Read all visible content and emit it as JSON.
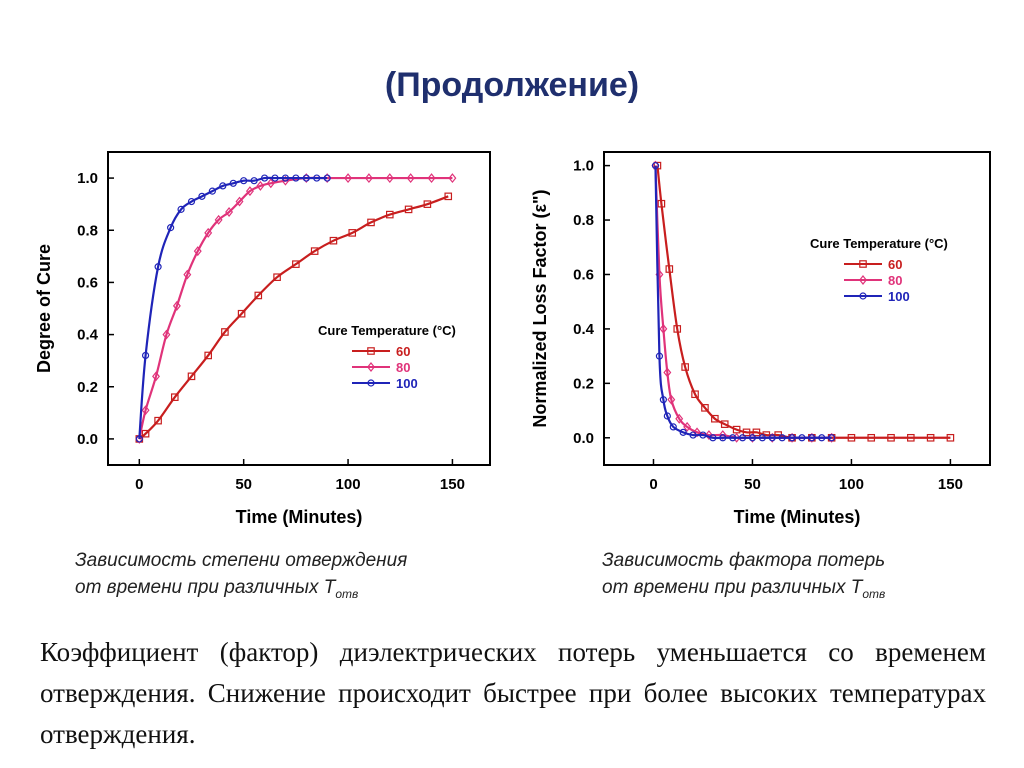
{
  "slide": {
    "title": "(Продолжение)",
    "caption_left_line1": "Зависимость степени отверждения",
    "caption_left_line2": "от времени при различных T",
    "caption_left_sub": "отв",
    "caption_right_line1": "Зависимость фактора потерь",
    "caption_right_line2": "от времени при различных T",
    "caption_right_sub": "отв",
    "body": "Коэффициент (фактор) диэлектрических потерь уменьшается со временем отверждения. Снижение происходит быстрее при более высоких температурах отверждения."
  },
  "colors": {
    "s60": "#c81e1e",
    "s80": "#e0337a",
    "s100": "#1f24b8",
    "title": "#1f2f6e"
  },
  "chart_data": [
    {
      "type": "line",
      "xlabel": "Time (Minutes)",
      "ylabel": "Degree of Cure",
      "xlim": [
        -15,
        168
      ],
      "ylim": [
        -0.1,
        1.1
      ],
      "xticks": [
        "0",
        "50",
        "100",
        "150"
      ],
      "yticks": [
        "0.0",
        "0.2",
        "0.4",
        "0.6",
        "0.8",
        "1.0"
      ],
      "legend_title": "Cure Temperature (°C)",
      "legend_position": "bottom-right",
      "series": [
        {
          "name": "60",
          "marker": "square",
          "x": [
            0,
            3,
            9,
            17,
            25,
            33,
            41,
            49,
            57,
            66,
            75,
            84,
            93,
            102,
            111,
            120,
            129,
            138,
            148
          ],
          "y": [
            0,
            0.02,
            0.07,
            0.16,
            0.24,
            0.32,
            0.41,
            0.48,
            0.55,
            0.62,
            0.67,
            0.72,
            0.76,
            0.79,
            0.83,
            0.86,
            0.88,
            0.9,
            0.93
          ]
        },
        {
          "name": "80",
          "marker": "diamond",
          "x": [
            0,
            3,
            8,
            13,
            18,
            23,
            28,
            33,
            38,
            43,
            48,
            53,
            58,
            63,
            70,
            80,
            90,
            100,
            110,
            120,
            130,
            140,
            150
          ],
          "y": [
            0,
            0.11,
            0.24,
            0.4,
            0.51,
            0.63,
            0.72,
            0.79,
            0.84,
            0.87,
            0.91,
            0.95,
            0.97,
            0.98,
            0.99,
            1.0,
            1.0,
            1.0,
            1.0,
            1.0,
            1.0,
            1.0,
            1.0
          ]
        },
        {
          "name": "100",
          "marker": "circle",
          "x": [
            0,
            3,
            9,
            15,
            20,
            25,
            30,
            35,
            40,
            45,
            50,
            55,
            60,
            65,
            70,
            75,
            80,
            85,
            90
          ],
          "y": [
            0,
            0.32,
            0.66,
            0.81,
            0.88,
            0.91,
            0.93,
            0.95,
            0.97,
            0.98,
            0.99,
            0.99,
            1.0,
            1.0,
            1.0,
            1.0,
            1.0,
            1.0,
            1.0
          ]
        }
      ]
    },
    {
      "type": "line",
      "xlabel": "Time (Minutes)",
      "ylabel": "Normalized Loss Factor (ε\")",
      "xlim": [
        -25,
        170
      ],
      "ylim": [
        -0.1,
        1.05
      ],
      "xticks": [
        "0",
        "50",
        "100",
        "150"
      ],
      "yticks": [
        "0.0",
        "0.2",
        "0.4",
        "0.6",
        "0.8",
        "1.0"
      ],
      "legend_title": "Cure Temperature (°C)",
      "legend_position": "top-right",
      "series": [
        {
          "name": "60",
          "marker": "square",
          "x": [
            2,
            4,
            8,
            12,
            16,
            21,
            26,
            31,
            36,
            42,
            47,
            52,
            57,
            63,
            70,
            80,
            90,
            100,
            110,
            120,
            130,
            140,
            150
          ],
          "y": [
            1.0,
            0.86,
            0.62,
            0.4,
            0.26,
            0.16,
            0.11,
            0.07,
            0.05,
            0.03,
            0.02,
            0.02,
            0.01,
            0.01,
            0.0,
            0.0,
            0.0,
            0.0,
            0.0,
            0.0,
            0.0,
            0.0,
            0.0
          ]
        },
        {
          "name": "80",
          "marker": "diamond",
          "x": [
            1,
            3,
            5,
            7,
            9,
            13,
            17,
            22,
            28,
            35,
            42,
            50,
            60,
            70,
            80,
            90
          ],
          "y": [
            1.0,
            0.6,
            0.4,
            0.24,
            0.14,
            0.07,
            0.04,
            0.02,
            0.01,
            0.01,
            0.0,
            0.0,
            0.0,
            0.0,
            0.0,
            0.0
          ]
        },
        {
          "name": "100",
          "marker": "circle",
          "x": [
            1,
            3,
            5,
            7,
            10,
            15,
            20,
            25,
            30,
            35,
            40,
            45,
            50,
            55,
            60,
            65,
            70,
            75,
            80,
            85,
            90
          ],
          "y": [
            1.0,
            0.3,
            0.14,
            0.08,
            0.04,
            0.02,
            0.01,
            0.01,
            0.0,
            0.0,
            0.0,
            0.0,
            0.0,
            0.0,
            0.0,
            0.0,
            0.0,
            0.0,
            0.0,
            0.0,
            0.0
          ]
        }
      ]
    }
  ]
}
